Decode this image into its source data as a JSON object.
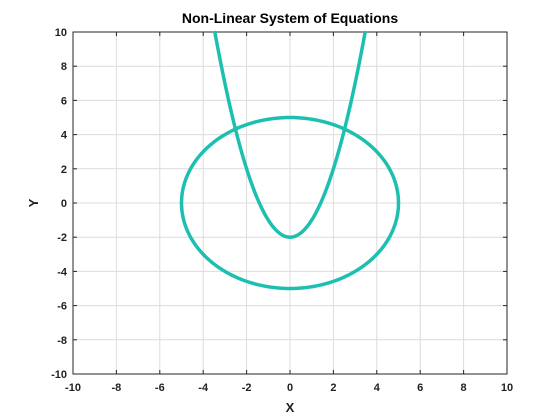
{
  "chart_data": {
    "type": "line",
    "title": "Non-Linear System of Equations",
    "xlabel": "X",
    "ylabel": "Y",
    "xlim": [
      -10,
      10
    ],
    "ylim": [
      -10,
      10
    ],
    "xticks": [
      -10,
      -8,
      -6,
      -4,
      -2,
      0,
      2,
      4,
      6,
      8,
      10
    ],
    "yticks": [
      -10,
      -8,
      -6,
      -4,
      -2,
      0,
      2,
      4,
      6,
      8,
      10
    ],
    "grid": true,
    "series": [
      {
        "equation": "x^2 + y^2 = 25",
        "shape": "circle",
        "center": [
          0,
          0
        ],
        "radius": 5,
        "color": "#1dbfb0"
      },
      {
        "equation": "y = x^2 - 2",
        "shape": "parabola",
        "x_range": [
          -3.46,
          3.46
        ],
        "color": "#1dbfb0"
      }
    ]
  }
}
